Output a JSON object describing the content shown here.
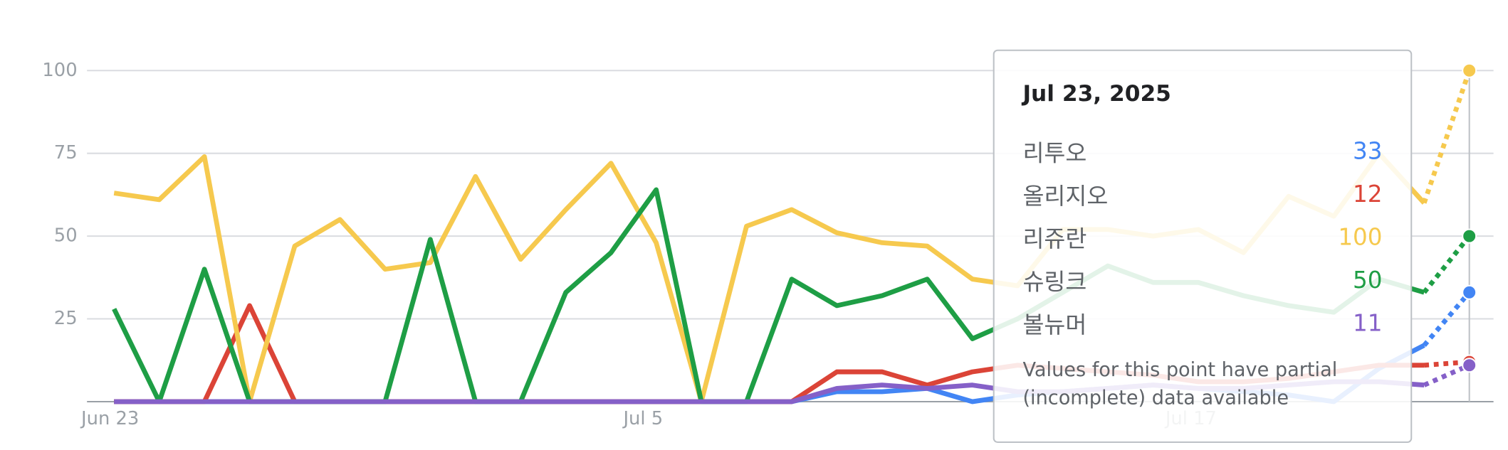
{
  "chart_data": {
    "type": "line",
    "x": [
      "2025-06-23",
      "2025-06-24",
      "2025-06-25",
      "2025-06-26",
      "2025-06-27",
      "2025-06-28",
      "2025-06-29",
      "2025-06-30",
      "2025-07-01",
      "2025-07-02",
      "2025-07-03",
      "2025-07-04",
      "2025-07-05",
      "2025-07-06",
      "2025-07-07",
      "2025-07-08",
      "2025-07-09",
      "2025-07-10",
      "2025-07-11",
      "2025-07-12",
      "2025-07-13",
      "2025-07-14",
      "2025-07-15",
      "2025-07-16",
      "2025-07-17",
      "2025-07-18",
      "2025-07-19",
      "2025-07-20",
      "2025-07-21",
      "2025-07-22",
      "2025-07-23"
    ],
    "xticks": [
      {
        "value": "2025-06-23",
        "label": "Jun 23"
      },
      {
        "value": "2025-07-05",
        "label": "Jul 5"
      },
      {
        "value": "2025-07-17",
        "label": "Jul 17"
      }
    ],
    "ylim": [
      0,
      100
    ],
    "yticks": [
      25,
      50,
      75,
      100
    ],
    "grid": true,
    "last_point_partial": true,
    "series": [
      {
        "name": "리투오",
        "color": "#4285f4",
        "values": [
          0,
          0,
          0,
          0,
          0,
          0,
          0,
          0,
          0,
          0,
          0,
          0,
          0,
          0,
          0,
          0,
          3,
          3,
          4,
          0,
          2,
          3,
          4,
          5,
          4,
          3,
          2,
          0,
          10,
          17,
          33
        ]
      },
      {
        "name": "올리지오",
        "color": "#db4437",
        "values": [
          0,
          0,
          0,
          29,
          0,
          0,
          0,
          0,
          0,
          0,
          0,
          0,
          0,
          0,
          0,
          0,
          9,
          9,
          5,
          9,
          11,
          10,
          9,
          8,
          6,
          6,
          7,
          9,
          11,
          11,
          12
        ]
      },
      {
        "name": "리쥬란",
        "color": "#f6c94e",
        "values": [
          63,
          61,
          74,
          0,
          47,
          55,
          40,
          42,
          68,
          43,
          58,
          72,
          48,
          0,
          53,
          58,
          51,
          48,
          47,
          37,
          35,
          52,
          52,
          50,
          52,
          45,
          62,
          56,
          75,
          60,
          100
        ]
      },
      {
        "name": "슈링크",
        "color": "#1e9e45",
        "values": [
          28,
          0,
          40,
          0,
          0,
          0,
          0,
          49,
          0,
          0,
          33,
          45,
          64,
          0,
          0,
          37,
          29,
          32,
          37,
          19,
          25,
          33,
          41,
          36,
          36,
          32,
          29,
          27,
          37,
          33,
          50
        ]
      },
      {
        "name": "볼뉴머",
        "color": "#8560c8",
        "values": [
          0,
          0,
          0,
          0,
          0,
          0,
          0,
          0,
          0,
          0,
          0,
          0,
          0,
          0,
          0,
          0,
          4,
          5,
          4,
          5,
          3,
          3,
          4,
          5,
          4,
          4,
          5,
          6,
          6,
          5,
          11
        ]
      }
    ],
    "tooltip": {
      "title": "Jul 23, 2025",
      "note": [
        "Values for this point have partial",
        "(incomplete) data available"
      ]
    }
  }
}
